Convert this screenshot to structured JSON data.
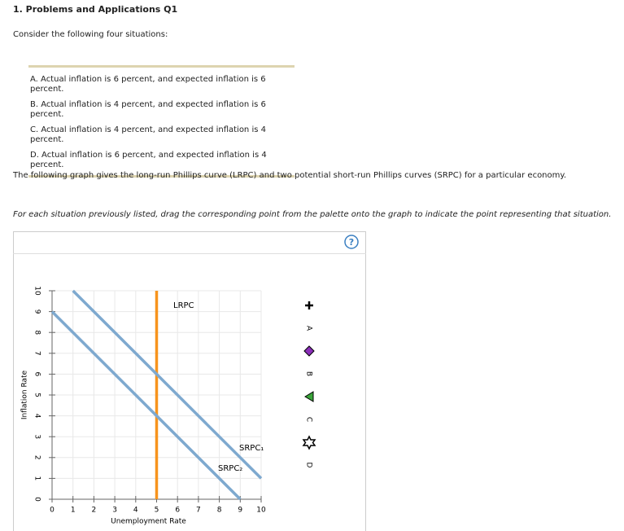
{
  "header": {
    "title": "1. Problems and Applications Q1"
  },
  "intro": "Consider the following four situations:",
  "situations": [
    "A. Actual inflation is 6 percent, and expected inflation is 6 percent.",
    "B. Actual inflation is 4 percent, and expected inflation is 6 percent.",
    "C. Actual inflation is 4 percent, and expected inflation is 4 percent.",
    "D. Actual inflation is 6 percent, and expected inflation is 4 percent."
  ],
  "graph_description": "The following graph gives the long-run Phillips curve (LRPC) and two potential short-run Phillips curves (SRPC) for a particular economy.",
  "instruction": "For each situation previously listed, drag the corresponding point from the palette onto the graph to indicate the point representing that situation.",
  "help_icon": "?",
  "palette": [
    {
      "label": "A"
    },
    {
      "label": "B"
    },
    {
      "label": "C"
    },
    {
      "label": "D"
    }
  ],
  "chart_data": {
    "type": "line",
    "x_label": "Unemployment Rate",
    "y_label": "Inflation Rate",
    "xlim": [
      0,
      10
    ],
    "ylim": [
      0,
      10
    ],
    "xticks": [
      0,
      1,
      2,
      3,
      4,
      5,
      6,
      7,
      8,
      9,
      10
    ],
    "yticks": [
      0,
      1,
      2,
      3,
      4,
      5,
      6,
      7,
      8,
      9,
      10
    ],
    "grid": true,
    "series": [
      {
        "name": "LRPC",
        "color": "#f7941d",
        "x": [
          5,
          5
        ],
        "values": [
          0,
          10
        ]
      },
      {
        "name": "SRPC₁",
        "color": "#7ea9cf",
        "x": [
          1,
          10
        ],
        "values": [
          10,
          1
        ]
      },
      {
        "name": "SRPC₂",
        "color": "#7ea9cf",
        "x": [
          0,
          9
        ],
        "values": [
          9,
          0
        ]
      }
    ]
  }
}
